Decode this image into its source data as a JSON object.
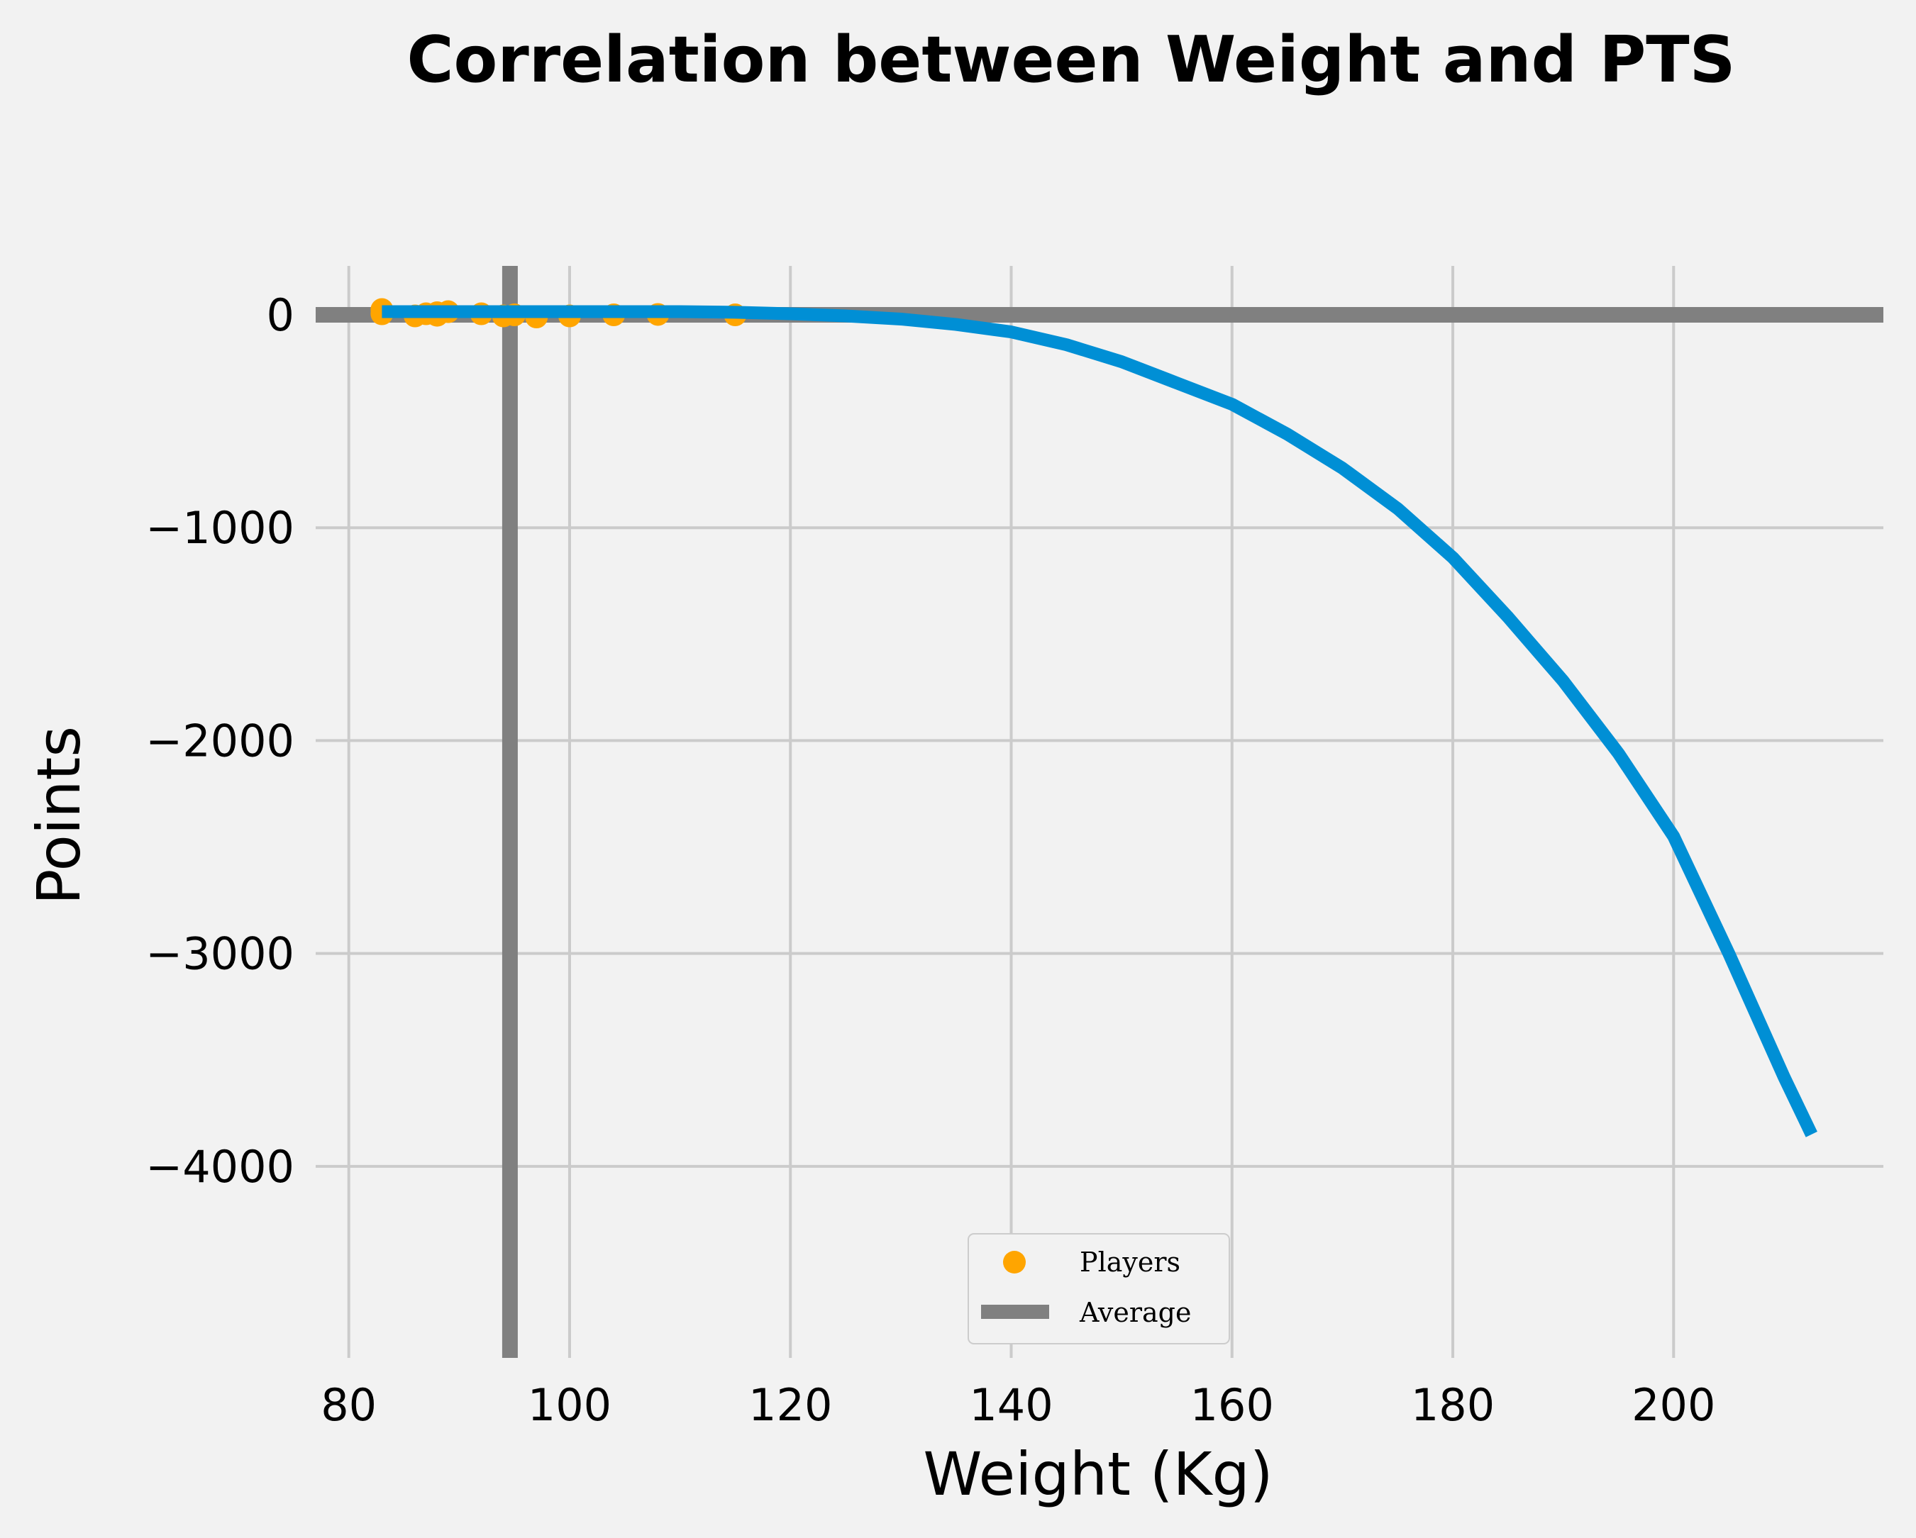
{
  "chart_data": {
    "type": "scatter",
    "title": "Correlation between Weight and PTS",
    "xlabel": "Weight (Kg)",
    "ylabel": "Points",
    "xlim": [
      77,
      219
    ],
    "ylim": [
      -4900,
      230
    ],
    "xticks": [
      80,
      100,
      120,
      140,
      160,
      180,
      200
    ],
    "yticks": [
      0,
      -1000,
      -2000,
      -3000,
      -4000
    ],
    "xtick_labels": [
      "80",
      "100",
      "120",
      "140",
      "160",
      "180",
      "200"
    ],
    "ytick_labels": [
      "0",
      "−1000",
      "−2000",
      "−3000",
      "−4000"
    ],
    "grid": true,
    "legend_position": "lower-center",
    "colors": {
      "players": "#ffa500",
      "average": "#808080",
      "trend": "#008fd5",
      "grid": "#cbcbcb",
      "background": "#f2f2f2"
    },
    "series": [
      {
        "name": "Players",
        "kind": "scatter",
        "points": [
          [
            83,
            25
          ],
          [
            83,
            5
          ],
          [
            86,
            -5
          ],
          [
            87,
            5
          ],
          [
            88,
            10
          ],
          [
            88,
            -2
          ],
          [
            89,
            15
          ],
          [
            92,
            5
          ],
          [
            94,
            -5
          ],
          [
            95,
            0
          ],
          [
            97,
            -10
          ],
          [
            100,
            -5
          ],
          [
            104,
            0
          ],
          [
            108,
            2
          ],
          [
            115,
            0
          ]
        ]
      },
      {
        "name": "Average",
        "kind": "reference-lines",
        "x": 94.6,
        "y": 0
      },
      {
        "kind": "line",
        "points": [
          [
            83,
            15
          ],
          [
            90,
            15
          ],
          [
            100,
            15
          ],
          [
            110,
            15
          ],
          [
            115,
            12
          ],
          [
            120,
            5
          ],
          [
            125,
            -5
          ],
          [
            130,
            -20
          ],
          [
            135,
            -45
          ],
          [
            140,
            -80
          ],
          [
            145,
            -140
          ],
          [
            150,
            -220
          ],
          [
            155,
            -320
          ],
          [
            160,
            -420
          ],
          [
            165,
            -560
          ],
          [
            170,
            -720
          ],
          [
            175,
            -910
          ],
          [
            180,
            -1140
          ],
          [
            185,
            -1420
          ],
          [
            190,
            -1720
          ],
          [
            195,
            -2060
          ],
          [
            200,
            -2450
          ],
          [
            205,
            -3000
          ],
          [
            210,
            -3580
          ],
          [
            212.5,
            -3850
          ]
        ]
      }
    ]
  }
}
